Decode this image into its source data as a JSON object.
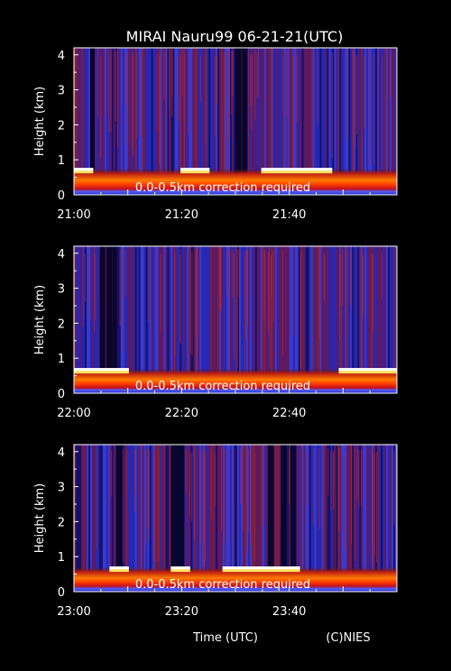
{
  "title": "MIRAI Nauru99 06-21-21(UTC)",
  "footer": {
    "xlabel": "Time (UTC)",
    "credit": "(C)NIES"
  },
  "colors": {
    "background": "#000000",
    "text": "#ffffff",
    "low": "#0a0a5a",
    "mid": "#3040c8",
    "high": "#ff6a00",
    "max": "#ffffff"
  },
  "chart_data": [
    {
      "type": "heatmap",
      "ylabel": "Height (km)",
      "ylim": [
        0,
        4.2
      ],
      "yticks": [
        "0",
        "1",
        "2",
        "3",
        "4"
      ],
      "xticks": [
        "21:00",
        "21:20",
        "21:40"
      ],
      "x_range": [
        "21:00",
        "22:00"
      ],
      "annotation": "0.0-0.5km correction required",
      "boundary_layer_top_km": 0.65,
      "bright_segments": [
        [
          0.0,
          0.06
        ],
        [
          0.33,
          0.42
        ],
        [
          0.58,
          0.8
        ]
      ],
      "dark_columns": [
        0.05,
        0.5,
        0.52
      ]
    },
    {
      "type": "heatmap",
      "ylabel": "Height (km)",
      "ylim": [
        0,
        4.2
      ],
      "yticks": [
        "0",
        "1",
        "2",
        "3",
        "4"
      ],
      "xticks": [
        "22:00",
        "22:20",
        "22:40"
      ],
      "x_range": [
        "22:00",
        "23:00"
      ],
      "annotation": "0.0-0.5km correction required",
      "boundary_layer_top_km": 0.6,
      "bright_segments": [
        [
          0.0,
          0.17
        ],
        [
          0.82,
          1.0
        ]
      ],
      "dark_columns": [
        0.08,
        0.1,
        0.12
      ]
    },
    {
      "type": "heatmap",
      "ylabel": "Height (km)",
      "ylim": [
        0,
        4.2
      ],
      "yticks": [
        "0",
        "1",
        "2",
        "3",
        "4"
      ],
      "xticks": [
        "23:00",
        "23:20",
        "23:40"
      ],
      "x_range": [
        "23:00",
        "24:00"
      ],
      "annotation": "0.0-0.5km correction required",
      "boundary_layer_top_km": 0.6,
      "bright_segments": [
        [
          0.11,
          0.17
        ],
        [
          0.3,
          0.36
        ],
        [
          0.46,
          0.7
        ]
      ],
      "dark_columns": [
        0.13,
        0.3,
        0.32,
        0.6,
        0.64,
        0.67
      ]
    }
  ]
}
